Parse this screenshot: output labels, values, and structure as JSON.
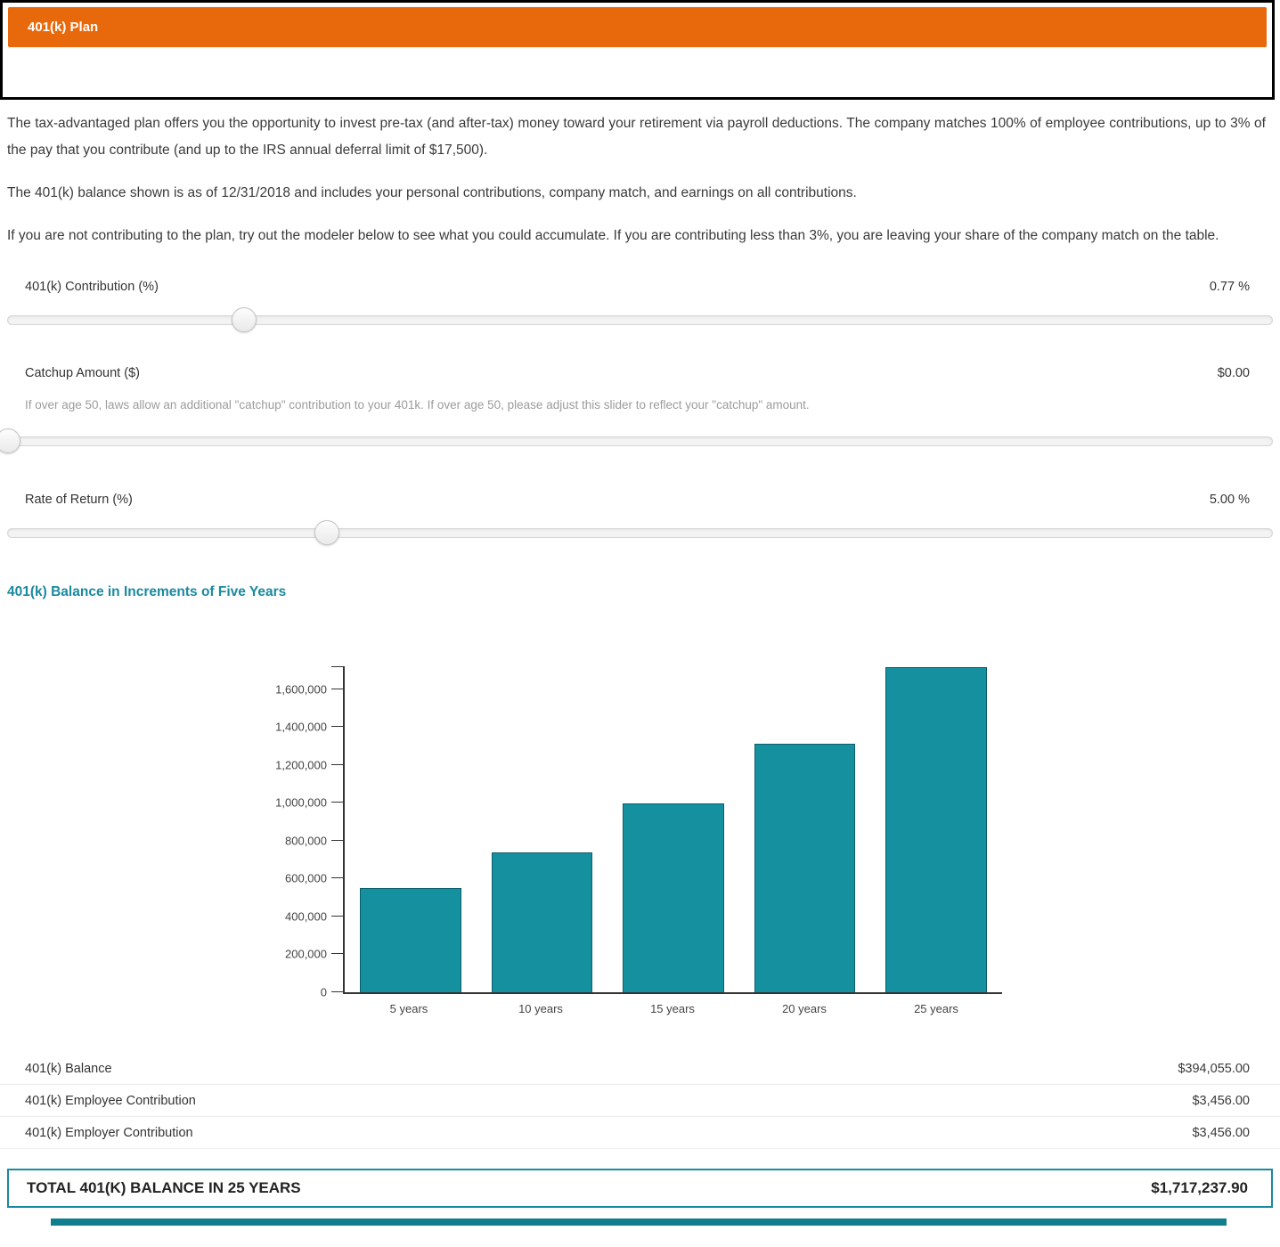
{
  "header": {
    "title": "401(k) Plan"
  },
  "intro": {
    "p1": "The tax-advantaged plan offers you the opportunity to invest pre-tax (and after-tax) money toward your retirement via payroll deductions. The company matches 100% of employee contributions, up to 3% of the pay that you contribute (and up to the IRS annual deferral limit of $17,500).",
    "p2": "The 401(k) balance shown is as of 12/31/2018 and includes your personal contributions, company match, and earnings on all contributions.",
    "p3": "If you are not contributing to the plan, try out the modeler below to see what you could accumulate. If you are contributing less than 3%, you are leaving your share of the company match on the table."
  },
  "sliders": [
    {
      "label": "401(k) Contribution (%)",
      "value": "0.77 %",
      "percent": 18.7,
      "helper": ""
    },
    {
      "label": "Catchup Amount ($)",
      "value": "$0.00",
      "percent": 0,
      "helper": "If over age 50, laws allow an additional \"catchup\" contribution to your 401k. If over age 50, please adjust this slider to reflect your \"catchup\" amount."
    },
    {
      "label": "Rate of Return (%)",
      "value": "5.00 %",
      "percent": 25.2,
      "helper": ""
    }
  ],
  "chart_section_title": "401(k) Balance in Increments of Five Years",
  "chart_data": {
    "type": "bar",
    "title": "401(k) Balance in Increments of Five Years",
    "categories": [
      "5 years",
      "10 years",
      "15 years",
      "20 years",
      "25 years"
    ],
    "values": [
      550000,
      740000,
      995000,
      1310000,
      1717237.9
    ],
    "xlabel": "",
    "ylabel": "",
    "ylim": [
      0,
      1720000
    ],
    "yticks": [
      0,
      200000,
      400000,
      600000,
      800000,
      1000000,
      1200000,
      1400000,
      1600000
    ],
    "grid": false,
    "legend": "none",
    "bar_color": "#14909f"
  },
  "summary": {
    "rows": [
      {
        "label": "401(k) Balance",
        "value": "$394,055.00"
      },
      {
        "label": "401(k) Employee Contribution",
        "value": "$3,456.00"
      },
      {
        "label": "401(k) Employer Contribution",
        "value": "$3,456.00"
      }
    ]
  },
  "total": {
    "label": "TOTAL 401(K) BALANCE IN 25 YEARS",
    "value": "$1,717,237.90"
  },
  "colors": {
    "header_orange": "#e8690b",
    "teal_accent": "#1a8a9e",
    "bar_fill": "#14909f"
  }
}
